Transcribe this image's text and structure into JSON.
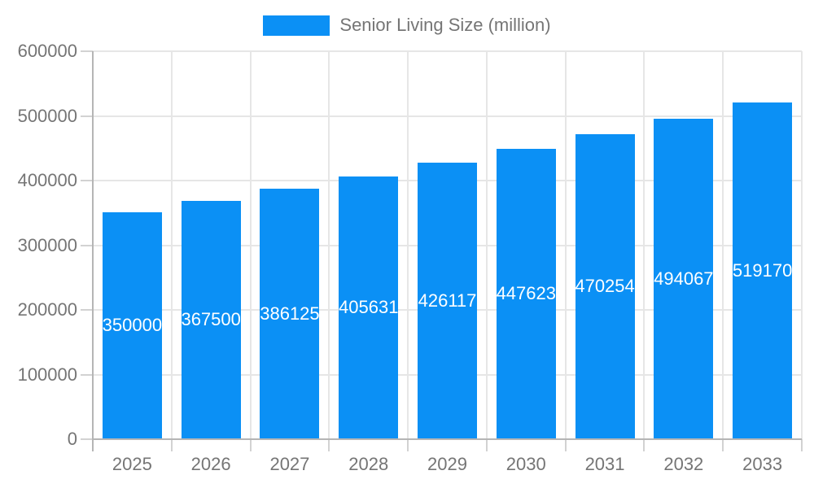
{
  "legend": {
    "label": "Senior Living Size (million)"
  },
  "colors": {
    "bar": "#0b90f5",
    "bar_label": "#ffffff",
    "axis_text": "#757575",
    "gridline": "#e6e6e6",
    "tick": "#d2d2d2",
    "axis_line": "#b5b5b5"
  },
  "chart_data": {
    "type": "bar",
    "title": "Senior Living Size (million)",
    "categories": [
      "2025",
      "2026",
      "2027",
      "2028",
      "2029",
      "2030",
      "2031",
      "2032",
      "2033"
    ],
    "values": [
      350000,
      367500,
      386125,
      405631,
      426117,
      447623,
      470254,
      494067,
      519170
    ],
    "bar_labels": [
      "350000",
      "367500",
      "386125",
      "405631",
      "426117",
      "447623",
      "470254",
      "494067",
      "519170"
    ],
    "xlabel": "",
    "ylabel": "",
    "ylim": [
      0,
      600000
    ],
    "y_ticks": [
      0,
      100000,
      200000,
      300000,
      400000,
      500000,
      600000
    ],
    "grid": true,
    "legend_position": "top",
    "legend_entries": [
      "Senior Living Size (million)"
    ]
  }
}
